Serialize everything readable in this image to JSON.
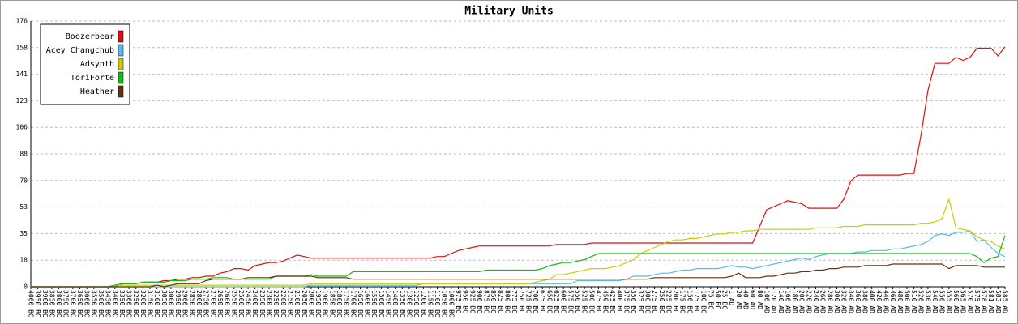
{
  "chart_data": {
    "type": "line",
    "title": "Military Units",
    "categories": [
      "4000 BC",
      "3950 BC",
      "3900 BC",
      "3850 BC",
      "3800 BC",
      "3750 BC",
      "3700 BC",
      "3650 BC",
      "3600 BC",
      "3550 BC",
      "3500 BC",
      "3450 BC",
      "3400 BC",
      "3350 BC",
      "3300 BC",
      "3250 BC",
      "3200 BC",
      "3150 BC",
      "3100 BC",
      "3050 BC",
      "3000 BC",
      "2950 BC",
      "2900 BC",
      "2850 BC",
      "2800 BC",
      "2750 BC",
      "2700 BC",
      "2650 BC",
      "2600 BC",
      "2550 BC",
      "2500 BC",
      "2450 BC",
      "2400 BC",
      "2350 BC",
      "2300 BC",
      "2250 BC",
      "2200 BC",
      "2150 BC",
      "2100 BC",
      "2050 BC",
      "2000 BC",
      "1950 BC",
      "1900 BC",
      "1850 BC",
      "1800 BC",
      "1750 BC",
      "1700 BC",
      "1650 BC",
      "1600 BC",
      "1550 BC",
      "1500 BC",
      "1450 BC",
      "1400 BC",
      "1350 BC",
      "1300 BC",
      "1250 BC",
      "1200 BC",
      "1150 BC",
      "1100 BC",
      "1050 BC",
      "1000 BC",
      "975 BC",
      "950 BC",
      "925 BC",
      "900 BC",
      "875 BC",
      "850 BC",
      "825 BC",
      "800 BC",
      "775 BC",
      "750 BC",
      "725 BC",
      "700 BC",
      "675 BC",
      "650 BC",
      "625 BC",
      "600 BC",
      "575 BC",
      "550 BC",
      "525 BC",
      "500 BC",
      "475 BC",
      "450 BC",
      "425 BC",
      "400 BC",
      "375 BC",
      "350 BC",
      "325 BC",
      "300 BC",
      "275 BC",
      "250 BC",
      "225 BC",
      "200 BC",
      "175 BC",
      "150 BC",
      "125 BC",
      "100 BC",
      "75 BC",
      "50 BC",
      "25 BC",
      "1 AD",
      "20 AD",
      "40 AD",
      "60 AD",
      "80 AD",
      "100 AD",
      "120 AD",
      "140 AD",
      "160 AD",
      "180 AD",
      "200 AD",
      "220 AD",
      "240 AD",
      "260 AD",
      "280 AD",
      "300 AD",
      "320 AD",
      "340 AD",
      "360 AD",
      "380 AD",
      "400 AD",
      "420 AD",
      "440 AD",
      "460 AD",
      "480 AD",
      "500 AD",
      "510 AD",
      "520 AD",
      "530 AD",
      "540 AD",
      "550 AD",
      "555 AD",
      "560 AD",
      "565 AD",
      "570 AD",
      "575 AD",
      "578 AD",
      "581 AD",
      "583 AD",
      "585 AD"
    ],
    "series": [
      {
        "name": "Boozerbear",
        "color": "#dd1111",
        "values": [
          0,
          0,
          0,
          0,
          0,
          0,
          0,
          0,
          0,
          0,
          0,
          0,
          0,
          2,
          2,
          2,
          3,
          3,
          3,
          4,
          4,
          5,
          5,
          6,
          6,
          7,
          7,
          9,
          10,
          12,
          12,
          11,
          14,
          15,
          16,
          16,
          17,
          19,
          21,
          20,
          19,
          19,
          19,
          19,
          19,
          19,
          19,
          19,
          19,
          19,
          19,
          19,
          19,
          19,
          19,
          19,
          19,
          19,
          20,
          20,
          22,
          24,
          25,
          26,
          27,
          27,
          27,
          27,
          27,
          27,
          27,
          27,
          27,
          27,
          27,
          28,
          28,
          28,
          28,
          28,
          29,
          29,
          29,
          29,
          29,
          29,
          29,
          29,
          29,
          29,
          29,
          29,
          29,
          29,
          29,
          29,
          29,
          29,
          29,
          29,
          29,
          29,
          29,
          29,
          40,
          51,
          53,
          55,
          57,
          56,
          55,
          52,
          52,
          52,
          52,
          52,
          58,
          70,
          74,
          74,
          74,
          74,
          74,
          74,
          74,
          75,
          75,
          100,
          130,
          148,
          148,
          148,
          152,
          150,
          152,
          158,
          158,
          158,
          153,
          159
        ]
      },
      {
        "name": "Acey Changchub",
        "color": "#55bbee",
        "values": [
          0,
          0,
          0,
          0,
          0,
          0,
          0,
          0,
          0,
          0,
          0,
          0,
          0,
          0,
          0,
          0,
          0,
          0,
          0,
          0,
          0,
          0,
          0,
          0,
          0,
          0,
          0,
          0,
          0,
          0,
          0,
          0,
          0,
          0,
          0,
          0,
          0,
          0,
          0,
          0,
          1,
          1,
          1,
          1,
          1,
          1,
          1,
          1,
          1,
          1,
          1,
          1,
          1,
          1,
          1,
          1,
          2,
          2,
          2,
          2,
          2,
          2,
          2,
          2,
          2,
          2,
          2,
          2,
          2,
          2,
          2,
          2,
          2,
          2,
          2,
          2,
          2,
          2,
          4,
          4,
          4,
          4,
          4,
          4,
          4,
          5,
          7,
          7,
          7,
          8,
          9,
          9,
          10,
          11,
          11,
          12,
          12,
          12,
          12,
          13,
          14,
          13,
          13,
          12,
          13,
          14,
          15,
          16,
          17,
          18,
          19,
          18,
          20,
          21,
          22,
          22,
          22,
          22,
          23,
          23,
          24,
          24,
          24,
          25,
          25,
          26,
          27,
          28,
          30,
          34,
          35,
          34,
          36,
          36,
          37,
          30,
          31,
          26,
          22,
          20
        ]
      },
      {
        "name": "Adsynth",
        "color": "#cccc00",
        "values": [
          0,
          0,
          0,
          0,
          0,
          0,
          0,
          0,
          0,
          0,
          0,
          0,
          1,
          1,
          1,
          1,
          1,
          1,
          1,
          1,
          1,
          1,
          1,
          1,
          1,
          1,
          1,
          1,
          1,
          1,
          1,
          1,
          1,
          1,
          1,
          1,
          1,
          1,
          1,
          1,
          2,
          2,
          2,
          2,
          2,
          2,
          2,
          2,
          2,
          2,
          2,
          2,
          2,
          2,
          2,
          2,
          2,
          2,
          2,
          2,
          2,
          2,
          2,
          2,
          2,
          2,
          2,
          2,
          2,
          2,
          2,
          2,
          3,
          4,
          5,
          8,
          8,
          9,
          10,
          11,
          12,
          12,
          12,
          13,
          14,
          16,
          18,
          22,
          24,
          26,
          28,
          30,
          31,
          31,
          32,
          32,
          33,
          34,
          35,
          35,
          36,
          36,
          37,
          37,
          38,
          38,
          38,
          38,
          38,
          38,
          38,
          38,
          39,
          39,
          39,
          39,
          40,
          40,
          40,
          41,
          41,
          41,
          41,
          41,
          41,
          41,
          41,
          42,
          42,
          43,
          45,
          58,
          39,
          38,
          37,
          33,
          31,
          30,
          27,
          25
        ]
      },
      {
        "name": "ToriForte",
        "color": "#11bb11",
        "values": [
          0,
          0,
          0,
          0,
          0,
          0,
          0,
          0,
          0,
          0,
          0,
          0,
          1,
          2,
          2,
          2,
          3,
          3,
          3,
          3,
          4,
          4,
          4,
          5,
          5,
          5,
          6,
          6,
          6,
          5,
          5,
          5,
          5,
          5,
          5,
          7,
          7,
          7,
          7,
          7,
          8,
          7,
          7,
          7,
          7,
          7,
          10,
          10,
          10,
          10,
          10,
          10,
          10,
          10,
          10,
          10,
          10,
          10,
          10,
          10,
          10,
          10,
          10,
          10,
          10,
          11,
          11,
          11,
          11,
          11,
          11,
          11,
          11,
          12,
          14,
          15,
          16,
          16,
          17,
          18,
          20,
          22,
          22,
          22,
          22,
          22,
          22,
          22,
          22,
          22,
          22,
          22,
          22,
          22,
          22,
          22,
          22,
          22,
          22,
          22,
          22,
          22,
          22,
          22,
          22,
          22,
          22,
          22,
          22,
          22,
          22,
          22,
          22,
          22,
          22,
          22,
          22,
          22,
          22,
          22,
          22,
          22,
          22,
          22,
          22,
          22,
          22,
          22,
          22,
          22,
          22,
          22,
          22,
          22,
          22,
          20,
          16,
          19,
          20,
          34
        ]
      },
      {
        "name": "Heather",
        "color": "#663311",
        "values": [
          0,
          0,
          0,
          0,
          0,
          0,
          0,
          0,
          0,
          0,
          0,
          0,
          0,
          0,
          0,
          0,
          0,
          0,
          1,
          0,
          1,
          2,
          2,
          2,
          2,
          4,
          5,
          5,
          5,
          5,
          5,
          6,
          6,
          6,
          6,
          7,
          7,
          7,
          7,
          7,
          7,
          6,
          6,
          6,
          6,
          6,
          5,
          5,
          5,
          5,
          5,
          5,
          5,
          5,
          5,
          5,
          5,
          5,
          5,
          5,
          5,
          5,
          5,
          5,
          5,
          5,
          5,
          5,
          5,
          5,
          5,
          5,
          5,
          5,
          5,
          5,
          5,
          5,
          5,
          5,
          5,
          5,
          5,
          5,
          5,
          5,
          5,
          5,
          5,
          6,
          6,
          6,
          6,
          6,
          6,
          6,
          6,
          6,
          6,
          6,
          7,
          9,
          6,
          6,
          6,
          7,
          7,
          8,
          9,
          9,
          10,
          10,
          11,
          11,
          12,
          12,
          13,
          13,
          13,
          14,
          14,
          14,
          14,
          15,
          15,
          15,
          15,
          15,
          15,
          15,
          15,
          12,
          14,
          14,
          14,
          14,
          13,
          13,
          13,
          13
        ]
      }
    ],
    "ylim": [
      0,
      176
    ],
    "yticks": [
      0,
      {
        "value": 17.6,
        "label": "18"
      },
      {
        "value": 35.2,
        "label": "35"
      },
      {
        "value": 52.8,
        "label": "53"
      },
      {
        "value": 70.4,
        "label": "70"
      },
      88,
      {
        "value": 105.6,
        "label": "106"
      },
      {
        "value": 123.2,
        "label": "123"
      },
      {
        "value": 140.8,
        "label": "141"
      },
      {
        "value": 158.4,
        "label": "158"
      },
      176
    ],
    "grid": true,
    "legend": "upper left"
  }
}
